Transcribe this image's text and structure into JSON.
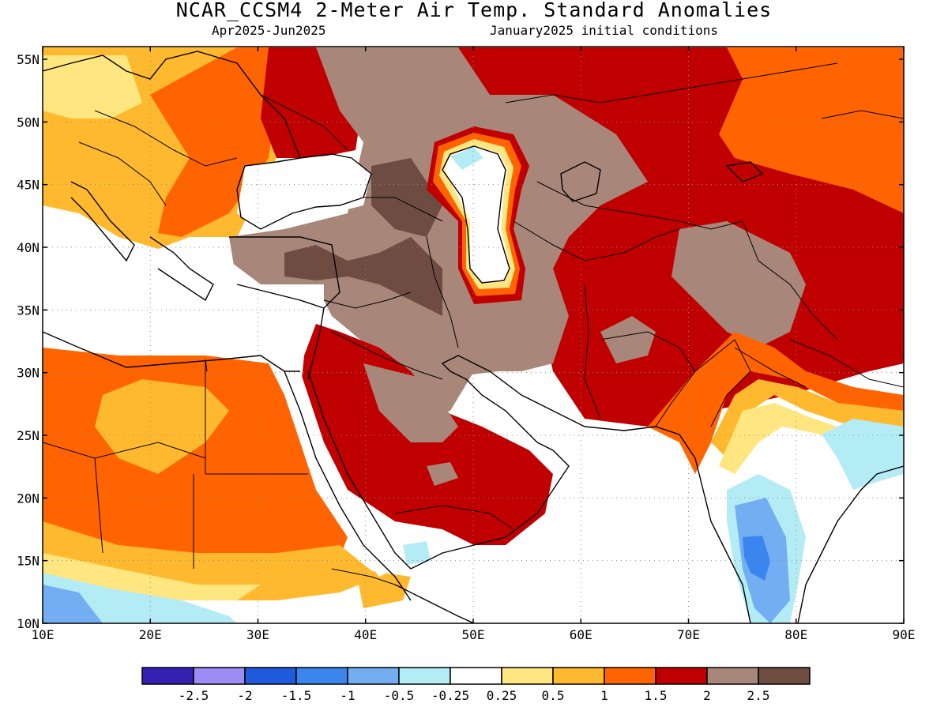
{
  "title": "NCAR_CCSM4 2-Meter Air Temp. Standard Anomalies",
  "subtitle_left": "Apr2025-Jun2025",
  "subtitle_right": "January2025 initial conditions",
  "lat_labels": [
    "55N",
    "50N",
    "45N",
    "40N",
    "35N",
    "30N",
    "25N",
    "20N",
    "15N",
    "10N"
  ],
  "lon_labels": [
    "10E",
    "20E",
    "30E",
    "40E",
    "50E",
    "60E",
    "70E",
    "80E",
    "90E"
  ],
  "colorbar": {
    "colors": [
      "#3520b4",
      "#9d8cf5",
      "#1f5bdc",
      "#3b86ee",
      "#74aef2",
      "#b4ecf5",
      "#ffffff",
      "#ffe681",
      "#ffb92e",
      "#ff6400",
      "#c00000",
      "#a88679",
      "#6e4c42"
    ],
    "labels": [
      "-2.5",
      "-2",
      "-1.5",
      "-1",
      "-0.5",
      "-0.25",
      "0.25",
      "0.5",
      "1",
      "1.5",
      "2",
      "2.5"
    ]
  },
  "colors": {
    "coast": "#000000",
    "grid": "#8c8c8c"
  }
}
